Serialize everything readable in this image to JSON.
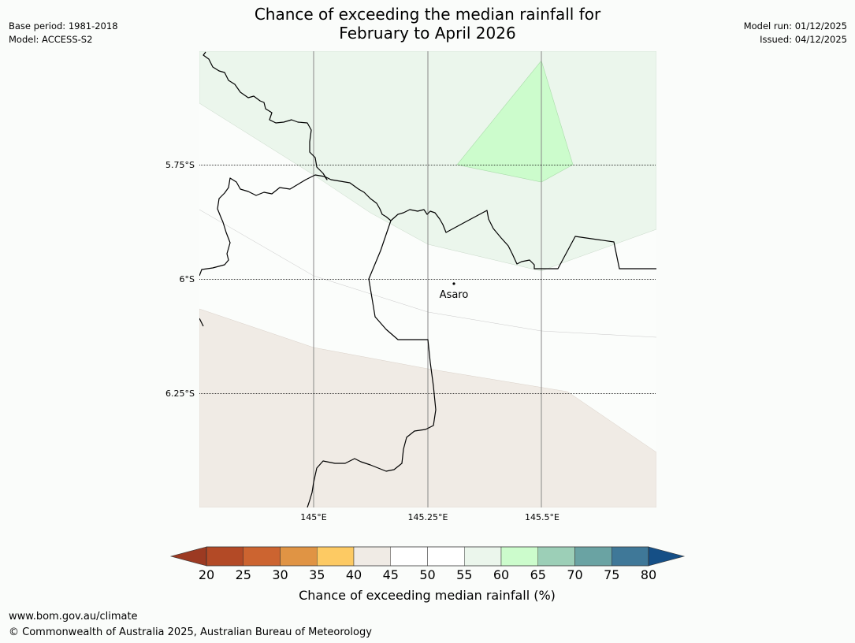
{
  "title": {
    "line1": "Chance of exceeding the median rainfall for",
    "line2": "February to April 2026"
  },
  "meta": {
    "base_period": "Base period: 1981-2018",
    "model": "Model: ACCESS-S2",
    "model_run": "Model run: 01/12/2025",
    "issued": "Issued: 04/12/2025"
  },
  "map": {
    "place_name": "Asaro",
    "lat_labels": [
      "5.75°S",
      "6°S",
      "6.25°S"
    ],
    "lon_labels": [
      "145°E",
      "145.25°E",
      "145.5°E"
    ]
  },
  "colorbar": {
    "title": "Chance of exceeding median rainfall (%)",
    "ticks": [
      "20",
      "25",
      "30",
      "35",
      "40",
      "45",
      "50",
      "55",
      "60",
      "65",
      "70",
      "75",
      "80"
    ],
    "under_color": "#9c3a22",
    "over_color": "#154f86",
    "colors": [
      "#b34a26",
      "#cc6430",
      "#e09444",
      "#fdca63",
      "#f0ebe5",
      "#ffffff",
      "#ffffff",
      "#ebf6ec",
      "#ccfccc",
      "#9ccfb7",
      "#6aa3a3",
      "#3f7898"
    ]
  },
  "footer": {
    "url": "www.bom.gov.au/climate",
    "copyright": "© Commonwealth of Australia 2025, Australian Bureau of Meteorology"
  }
}
